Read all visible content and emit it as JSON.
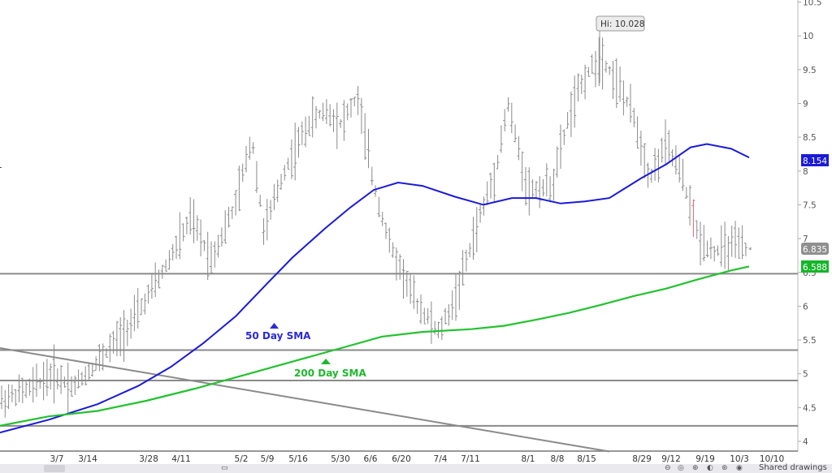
{
  "chart_data": {
    "type": "ohlc",
    "ylim": [
      3.85,
      10.55
    ],
    "y_ticks": [
      "4",
      "4.5",
      "5",
      "5.5",
      "6",
      "6.5",
      "7",
      "7.5",
      "8",
      "8.5",
      "9",
      "9.5",
      "10",
      "10.5"
    ],
    "x_ticks": [
      "3/7",
      "3/14",
      "3/28",
      "4/11",
      "5/2",
      "5/9",
      "5/16",
      "5/30",
      "6/6",
      "6/20",
      "7/4",
      "7/11",
      "8/1",
      "8/8",
      "8/15",
      "8/29",
      "9/12",
      "9/19",
      "10/3",
      "10/10"
    ],
    "high_label": "Hi: 10.028",
    "last_price": "6.835",
    "series": [
      {
        "name": "50 Day SMA",
        "color": "#1a1ad8",
        "points": [
          [
            0,
            4.13
          ],
          [
            60,
            4.32
          ],
          [
            120,
            4.55
          ],
          [
            170,
            4.82
          ],
          [
            210,
            5.1
          ],
          [
            250,
            5.45
          ],
          [
            290,
            5.85
          ],
          [
            330,
            6.35
          ],
          [
            360,
            6.72
          ],
          [
            400,
            7.15
          ],
          [
            430,
            7.45
          ],
          [
            460,
            7.72
          ],
          [
            490,
            7.83
          ],
          [
            520,
            7.78
          ],
          [
            560,
            7.62
          ],
          [
            595,
            7.5
          ],
          [
            630,
            7.6
          ],
          [
            660,
            7.6
          ],
          [
            690,
            7.52
          ],
          [
            720,
            7.55
          ],
          [
            750,
            7.6
          ],
          [
            790,
            7.9
          ],
          [
            820,
            8.1
          ],
          [
            850,
            8.35
          ],
          [
            870,
            8.4
          ],
          [
            900,
            8.33
          ],
          [
            922,
            8.2
          ]
        ]
      },
      {
        "name": "200 Day SMA",
        "color": "#22c22f",
        "points": [
          [
            0,
            4.23
          ],
          [
            60,
            4.37
          ],
          [
            120,
            4.45
          ],
          [
            180,
            4.6
          ],
          [
            240,
            4.78
          ],
          [
            300,
            4.98
          ],
          [
            360,
            5.18
          ],
          [
            420,
            5.38
          ],
          [
            470,
            5.55
          ],
          [
            520,
            5.62
          ],
          [
            580,
            5.66
          ],
          [
            620,
            5.71
          ],
          [
            660,
            5.8
          ],
          [
            700,
            5.9
          ],
          [
            740,
            6.02
          ],
          [
            780,
            6.15
          ],
          [
            820,
            6.26
          ],
          [
            860,
            6.4
          ],
          [
            900,
            6.53
          ],
          [
            922,
            6.588
          ]
        ]
      }
    ],
    "horizontal_lines": [
      6.48,
      5.35,
      4.9,
      4.23
    ],
    "trendline": [
      [
        0,
        5.38
      ],
      [
        750,
        3.85
      ]
    ],
    "sma_values": {
      "sma50": "8.154",
      "sma200": "6.588"
    },
    "annotations": [
      {
        "text": "50 Day SMA",
        "color": "#2a2ad6"
      },
      {
        "text": "200 Day SMA",
        "color": "#1eb82e"
      }
    ],
    "bar_color": "#8a8a8a",
    "highlight_bar_color": "#e0607a",
    "badge_color_last": "#8f8f8f",
    "badge_color_sma50": "#1a1ad8",
    "badge_color_sma200": "#16b52a"
  },
  "toolbar": {
    "shared_drawings_label": "Shared drawings"
  }
}
